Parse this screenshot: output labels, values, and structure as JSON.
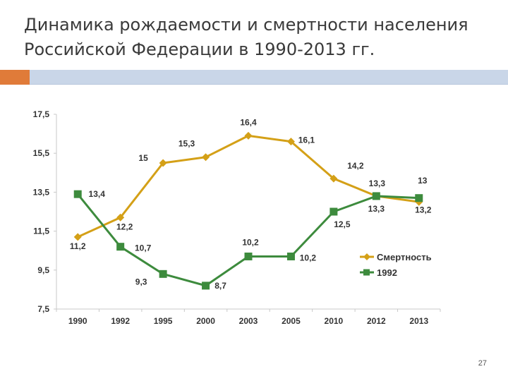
{
  "slide": {
    "title_line1": "Динамика рождаемости и смертности населения",
    "title_line2": "Российской Федерации в 1990-2013 гг.",
    "page_number": "27",
    "accent_color": "#e07b39",
    "bar_color": "#c9d6e8"
  },
  "chart_data": {
    "type": "line",
    "title": "",
    "xlabel": "",
    "ylabel": "",
    "categories": [
      "1990",
      "1992",
      "1995",
      "2000",
      "2003",
      "2005",
      "2010",
      "2012",
      "2013"
    ],
    "ylim": [
      7.5,
      17.5
    ],
    "yticks": [
      "7,5",
      "9,5",
      "11,5",
      "13,5",
      "15,5",
      "17,5"
    ],
    "grid": false,
    "legend": "right",
    "series": [
      {
        "name": "Смертность",
        "color": "#d4a017",
        "marker": "diamond",
        "values": [
          11.2,
          12.2,
          15,
          15.3,
          16.4,
          16.1,
          14.2,
          13.3,
          13
        ],
        "labels": [
          "11,2",
          "12,2",
          "15",
          "15,3",
          "16,4",
          "16,1",
          "14,2",
          "13,3",
          "13"
        ]
      },
      {
        "name": "1992",
        "color": "#3d8b3d",
        "marker": "square",
        "values": [
          13.4,
          10.7,
          9.3,
          8.7,
          10.2,
          10.2,
          12.5,
          13.3,
          13.2
        ],
        "labels": [
          "13,4",
          "10,7",
          "9,3",
          "8,7",
          "10,2",
          "10,2",
          "12,5",
          "13,3",
          "13,2"
        ]
      }
    ]
  }
}
